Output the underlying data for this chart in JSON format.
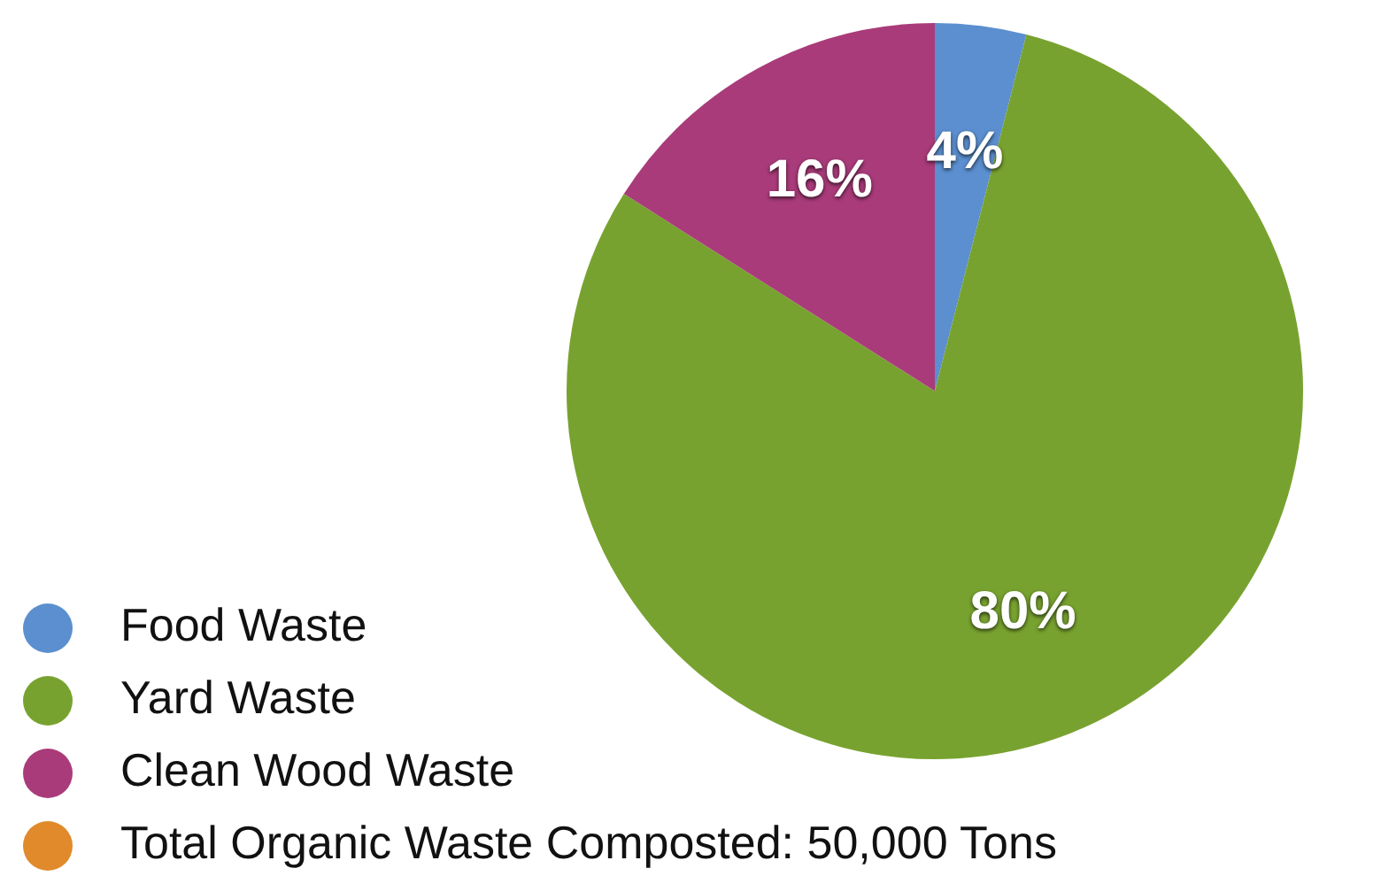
{
  "chart_data": {
    "type": "pie",
    "categories": [
      "Food Waste",
      "Yard Waste",
      "Clean Wood Waste",
      "Total Organic Waste Composted: 50,000 Tons"
    ],
    "values": [
      4,
      80,
      16,
      0
    ],
    "colors": [
      "#5b8fcf",
      "#78a22f",
      "#a93b7a",
      "#e08a2c"
    ],
    "value_labels": [
      "4%",
      "80%",
      "16%",
      null
    ],
    "legend": "bottom left"
  }
}
